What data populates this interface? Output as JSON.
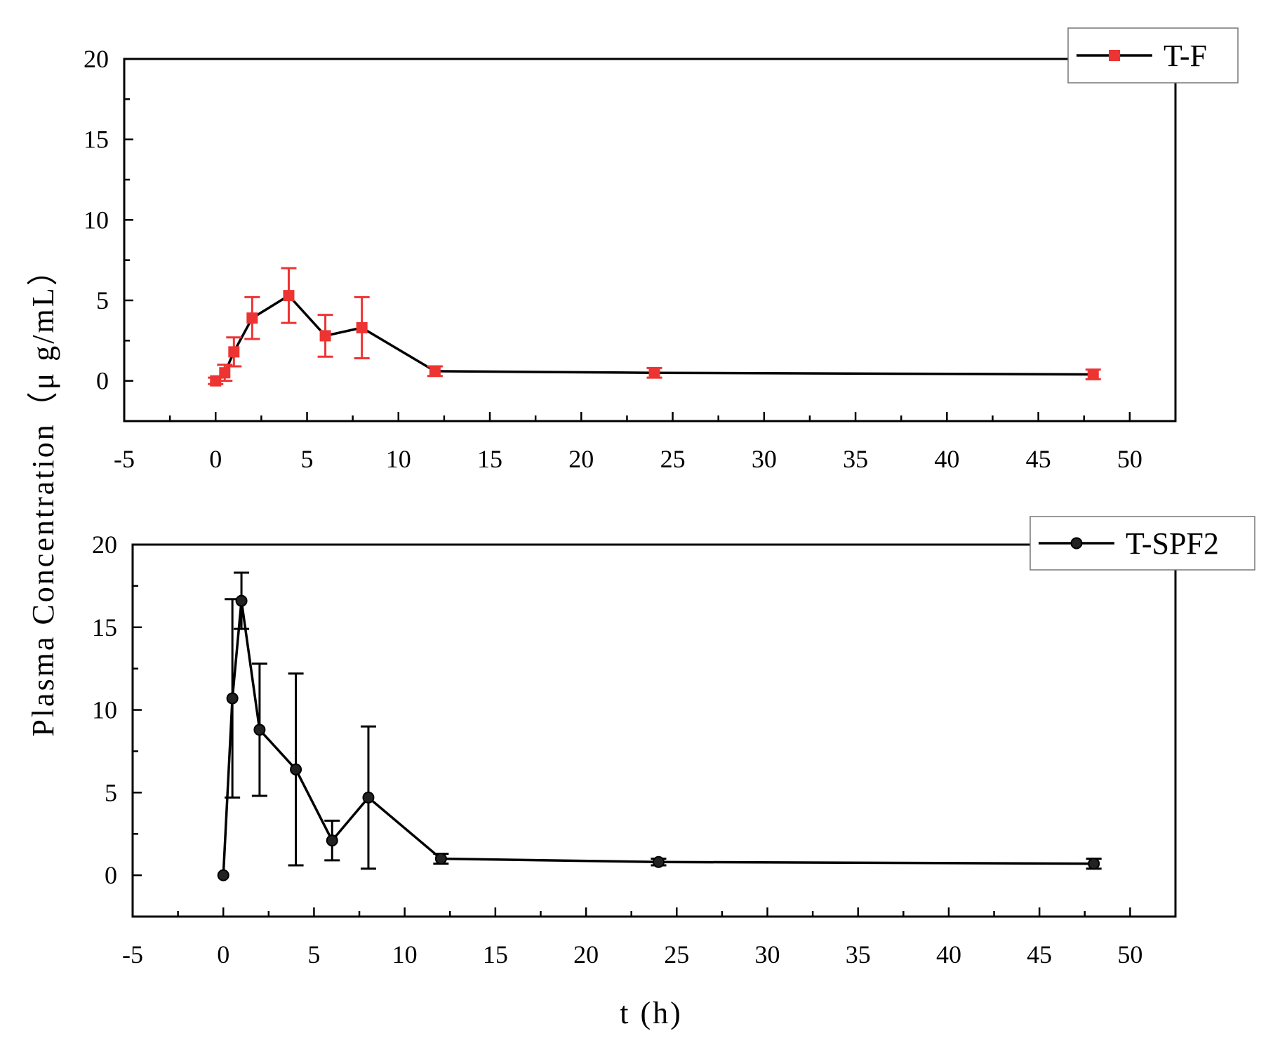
{
  "chart_data": [
    {
      "type": "line",
      "xlim": [
        -5,
        52.5
      ],
      "ylim": [
        -2.5,
        20
      ],
      "x_ticks": [
        "-5",
        "0",
        "5",
        "10",
        "15",
        "20",
        "25",
        "30",
        "35",
        "40",
        "45",
        "50"
      ],
      "y_ticks": [
        "0",
        "5",
        "10",
        "15",
        "20"
      ],
      "legend_position": "top-right",
      "series": [
        {
          "name": "T-F",
          "color": "#ee3333",
          "line_color": "#000000",
          "marker": "square",
          "x": [
            0,
            0.5,
            1,
            2,
            4,
            6,
            8,
            12,
            24,
            48
          ],
          "y": [
            0,
            0.5,
            1.8,
            3.9,
            5.3,
            2.8,
            3.3,
            0.6,
            0.5,
            0.4
          ],
          "error": [
            0.2,
            0.5,
            0.9,
            1.3,
            1.7,
            1.3,
            1.9,
            0.3,
            0.3,
            0.3
          ]
        }
      ]
    },
    {
      "type": "line",
      "xlim": [
        -5,
        52.5
      ],
      "ylim": [
        -2.5,
        20
      ],
      "x_ticks": [
        "-5",
        "0",
        "5",
        "10",
        "15",
        "20",
        "25",
        "30",
        "35",
        "40",
        "45",
        "50"
      ],
      "y_ticks": [
        "0",
        "5",
        "10",
        "15",
        "20"
      ],
      "legend_position": "top-right",
      "series": [
        {
          "name": "T-SPF2",
          "color": "#000000",
          "line_color": "#000000",
          "marker": "circle",
          "x": [
            0,
            0.5,
            1,
            2,
            4,
            6,
            8,
            12,
            24,
            48
          ],
          "y": [
            0,
            10.7,
            16.6,
            8.8,
            6.4,
            2.1,
            4.7,
            1.0,
            0.8,
            0.7
          ],
          "error": [
            0,
            6.0,
            1.7,
            4.0,
            5.8,
            1.2,
            4.3,
            0.3,
            0.2,
            0.3
          ]
        }
      ]
    }
  ],
  "shared": {
    "ylabel": "Plasma Concentration（μ g/mL）",
    "xlabel": "t (h)"
  }
}
